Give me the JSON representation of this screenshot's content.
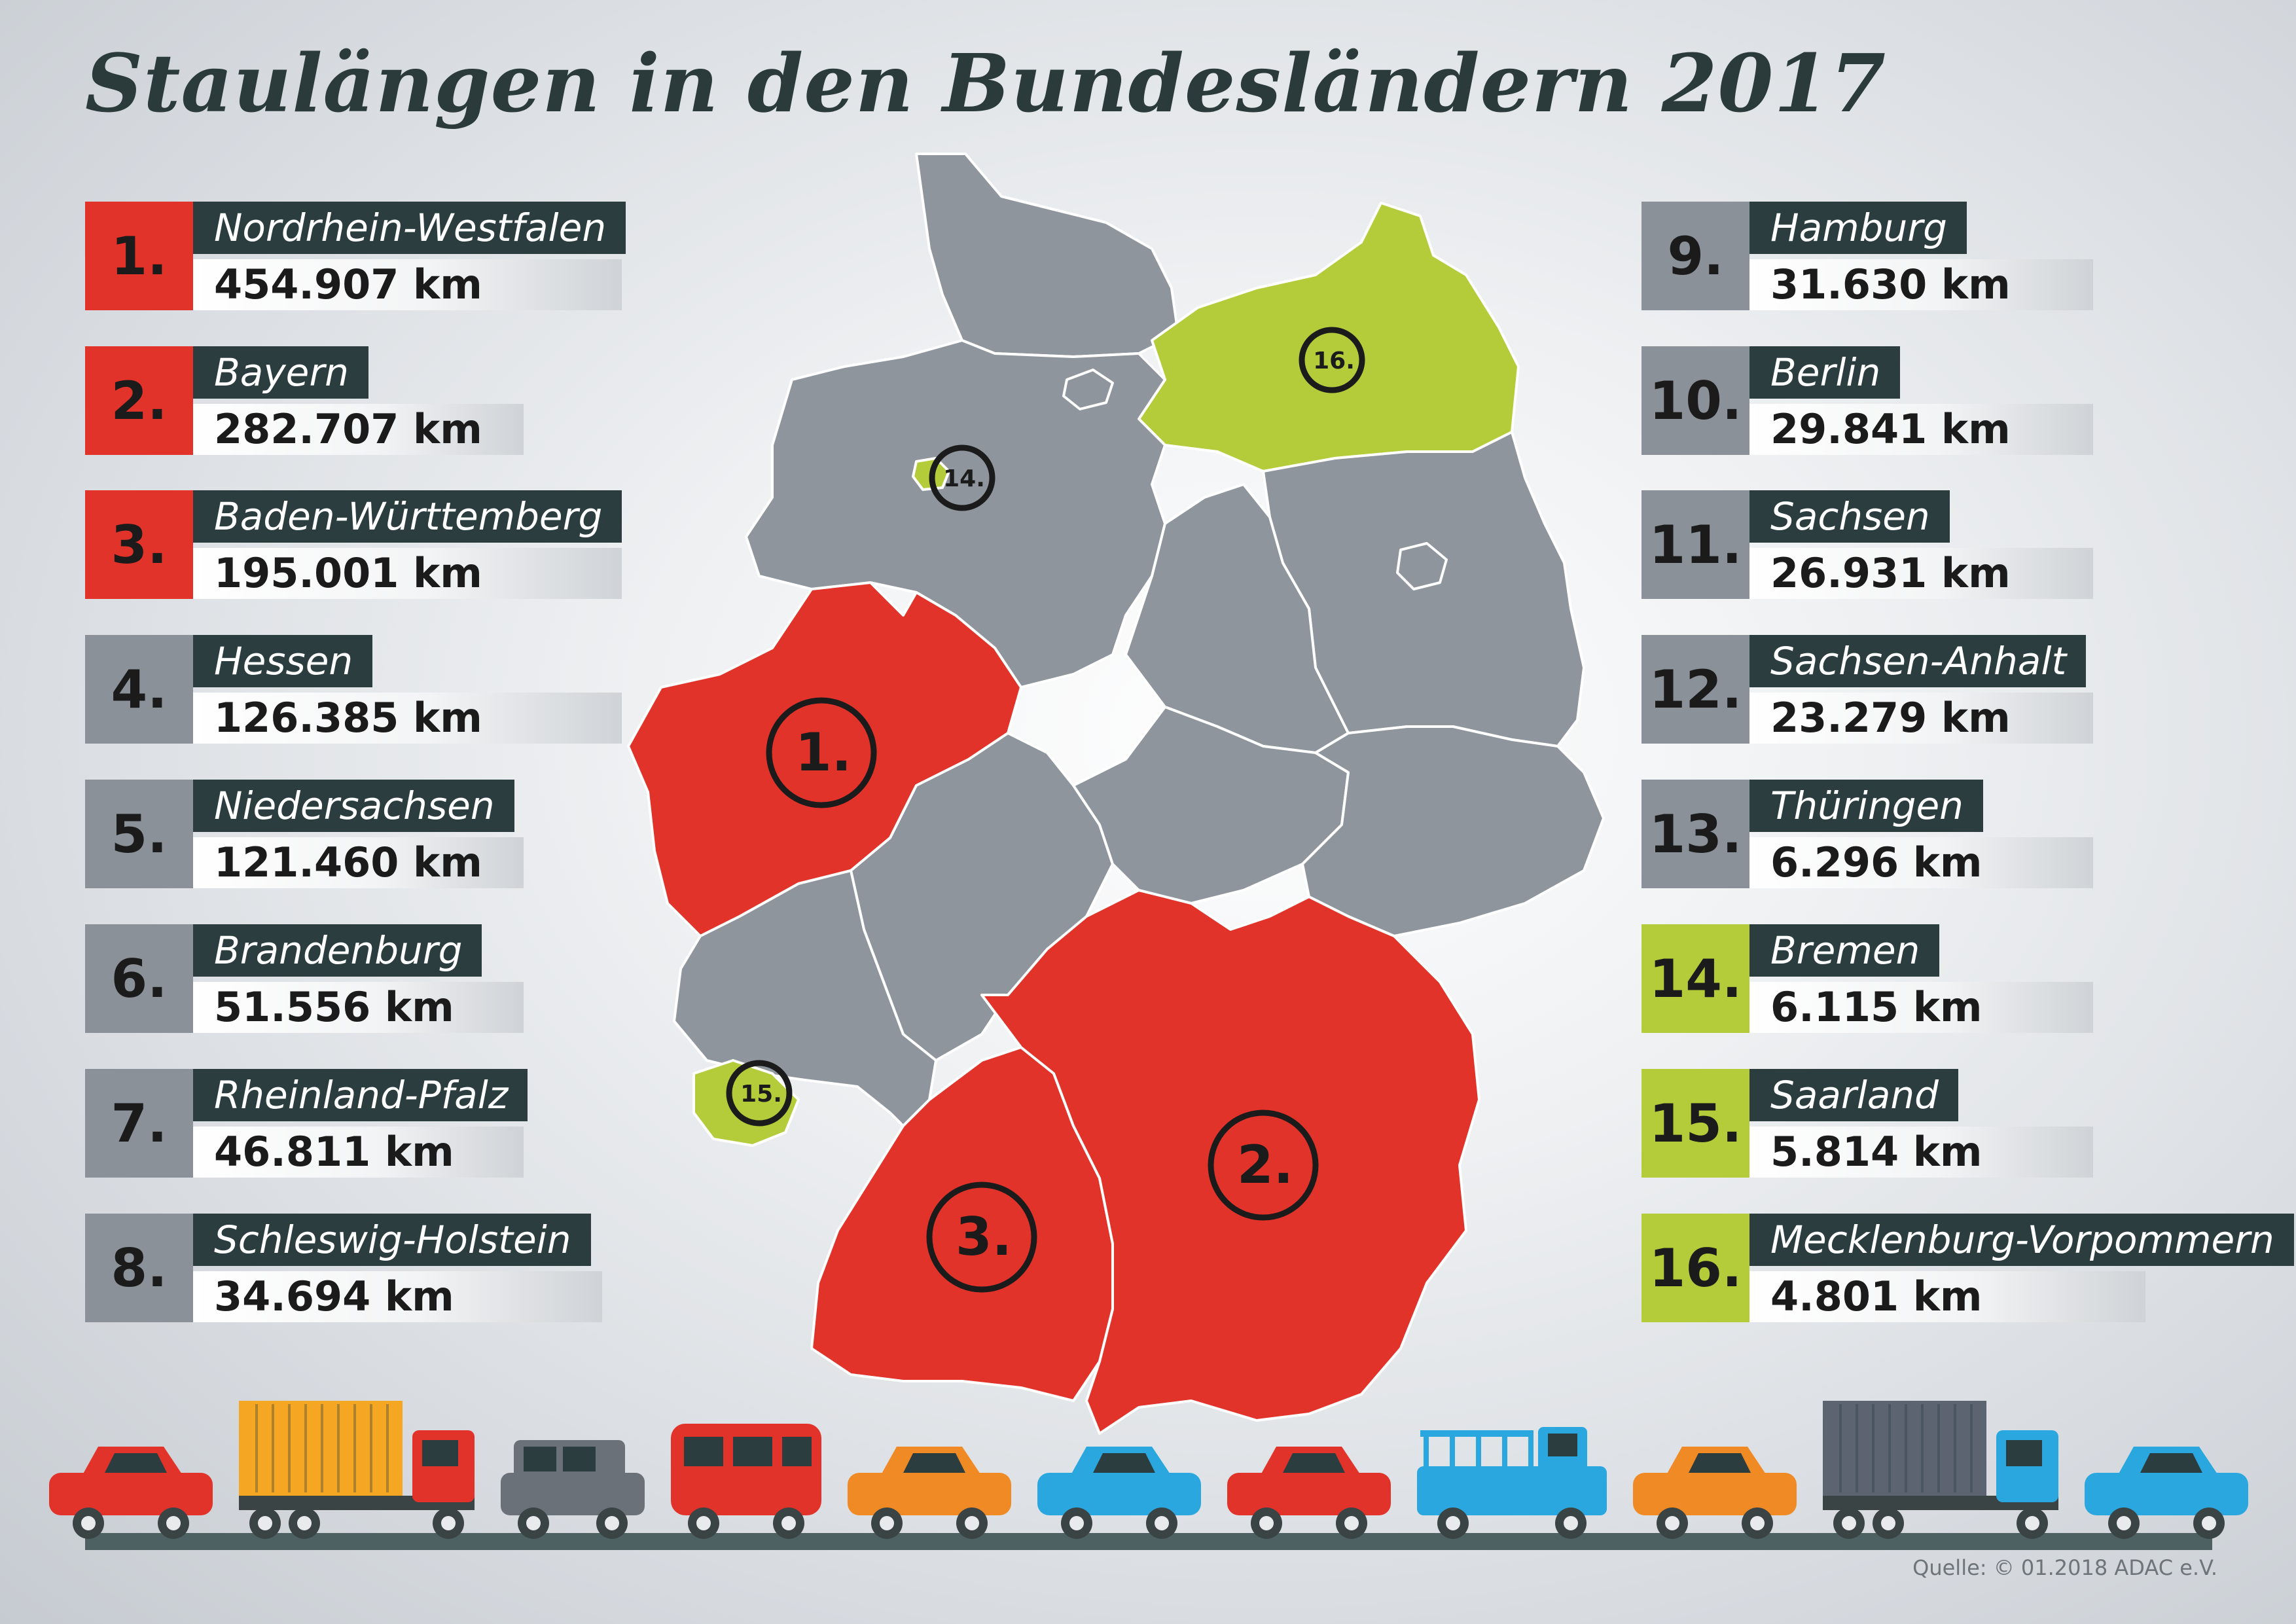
{
  "title": "Staulängen in den Bundesländern 2017",
  "source": "Quelle: © 01.2018 ADAC e.V.",
  "colors": {
    "red": "#e2332a",
    "grey": "#8a9198",
    "green": "#b5cc3a",
    "dark": "#2b3d3f",
    "map_grey": "#8f959d"
  },
  "rankings": [
    {
      "rank": "1.",
      "state": "Nordrhein-Westfalen",
      "km": "454.907 km",
      "category": "red"
    },
    {
      "rank": "2.",
      "state": "Bayern",
      "km": "282.707 km",
      "category": "red"
    },
    {
      "rank": "3.",
      "state": "Baden-Württemberg",
      "km": "195.001 km",
      "category": "red"
    },
    {
      "rank": "4.",
      "state": "Hessen",
      "km": "126.385 km",
      "category": "grey"
    },
    {
      "rank": "5.",
      "state": "Niedersachsen",
      "km": "121.460 km",
      "category": "grey"
    },
    {
      "rank": "6.",
      "state": "Brandenburg",
      "km": "51.556 km",
      "category": "grey"
    },
    {
      "rank": "7.",
      "state": "Rheinland-Pfalz",
      "km": "46.811 km",
      "category": "grey"
    },
    {
      "rank": "8.",
      "state": "Schleswig-Holstein",
      "km": "34.694 km",
      "category": "grey"
    },
    {
      "rank": "9.",
      "state": "Hamburg",
      "km": "31.630 km",
      "category": "grey"
    },
    {
      "rank": "10.",
      "state": "Berlin",
      "km": "29.841 km",
      "category": "grey"
    },
    {
      "rank": "11.",
      "state": "Sachsen",
      "km": "26.931 km",
      "category": "grey"
    },
    {
      "rank": "12.",
      "state": "Sachsen-Anhalt",
      "km": "23.279 km",
      "category": "grey"
    },
    {
      "rank": "13.",
      "state": "Thüringen",
      "km": "6.296 km",
      "category": "grey"
    },
    {
      "rank": "14.",
      "state": "Bremen",
      "km": "6.115 km",
      "category": "green"
    },
    {
      "rank": "15.",
      "state": "Saarland",
      "km": "5.814 km",
      "category": "green"
    },
    {
      "rank": "16.",
      "state": "Mecklenburg-Vorpommern",
      "km": "4.801 km",
      "category": "green"
    }
  ],
  "map_labels": {
    "nrw": "1.",
    "bayern": "2.",
    "bw": "3.",
    "bremen": "14.",
    "saarland": "15.",
    "mv": "16."
  },
  "vehicles": [
    {
      "type": "car",
      "color": "#e2332a"
    },
    {
      "type": "container-truck",
      "color": "#f5a623"
    },
    {
      "type": "suv",
      "color": "#6b7178"
    },
    {
      "type": "van",
      "color": "#e2332a"
    },
    {
      "type": "car",
      "color": "#f08a24"
    },
    {
      "type": "car",
      "color": "#2aa7df"
    },
    {
      "type": "car",
      "color": "#e2332a"
    },
    {
      "type": "pickup",
      "color": "#2aa7df"
    },
    {
      "type": "car",
      "color": "#f08a24"
    },
    {
      "type": "container-truck",
      "color": "#5b6470"
    },
    {
      "type": "car",
      "color": "#2aa7df"
    }
  ]
}
